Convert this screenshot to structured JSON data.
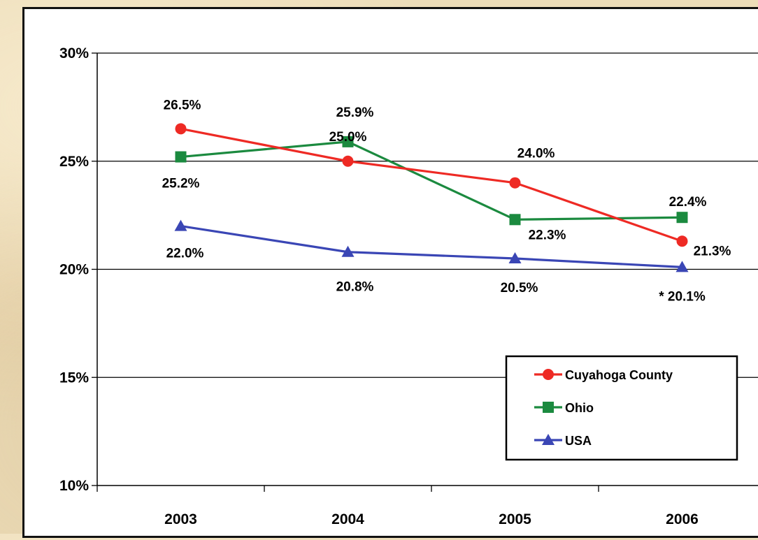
{
  "chart_data": {
    "type": "line",
    "categories": [
      "2003",
      "2004",
      "2005",
      "2006"
    ],
    "y_ticks": [
      "30%",
      "25%",
      "20%",
      "15%",
      "10%"
    ],
    "y_tick_values": [
      30,
      25,
      20,
      15,
      10
    ],
    "ylim": [
      10,
      30
    ],
    "grid": "horizontal major gridlines",
    "legend_position": "lower-right",
    "series": [
      {
        "name": "Cuyahoga County",
        "color": "#ee2a24",
        "marker": "circle",
        "values": [
          26.5,
          25.0,
          24.0,
          21.3
        ],
        "labels": [
          "26.5%",
          "25.0%",
          "24.0%",
          "21.3%"
        ]
      },
      {
        "name": "Ohio",
        "color": "#1b8a3f",
        "marker": "square",
        "values": [
          25.2,
          25.9,
          22.3,
          22.4
        ],
        "labels": [
          "25.2%",
          "25.9%",
          "22.3%",
          "22.4%"
        ]
      },
      {
        "name": "USA",
        "color": "#3a46b5",
        "marker": "triangle",
        "values": [
          22.0,
          20.8,
          20.5,
          20.1
        ],
        "labels": [
          "22.0%",
          "20.8%",
          "20.5%",
          "* 20.1%"
        ]
      }
    ]
  }
}
